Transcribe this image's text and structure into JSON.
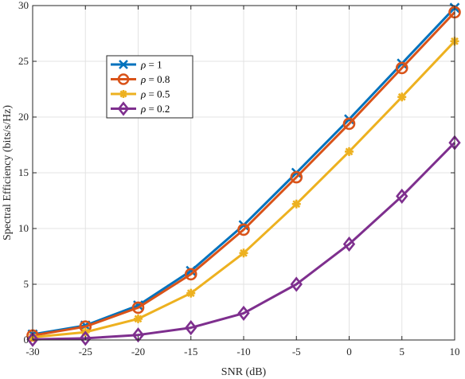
{
  "chart_data": {
    "type": "line",
    "title": "",
    "xlabel": "SNR (dB)",
    "ylabel": "Spectral Efficiency (bits/s/Hz)",
    "x": [
      -30,
      -25,
      -20,
      -15,
      -10,
      -5,
      0,
      5,
      10
    ],
    "xlim": [
      -30,
      10
    ],
    "ylim": [
      0,
      30
    ],
    "xticks": [
      "-30",
      "-25",
      "-20",
      "-15",
      "-10",
      "-5",
      "0",
      "5",
      "10"
    ],
    "yticks": [
      "0",
      "5",
      "10",
      "15",
      "20",
      "25",
      "30"
    ],
    "grid": true,
    "legend_position": "upper-left",
    "series": [
      {
        "name": "ρ = 1",
        "symbol": "ρ",
        "value_text": " = 1",
        "color": "#0072BD",
        "marker": "x",
        "values": [
          0.5,
          1.3,
          3.1,
          6.2,
          10.3,
          15.0,
          19.8,
          24.8,
          29.8
        ]
      },
      {
        "name": "ρ = 0.8",
        "symbol": "ρ",
        "value_text": " = 0.8",
        "color": "#D95319",
        "marker": "o",
        "values": [
          0.4,
          1.2,
          2.9,
          5.9,
          9.9,
          14.6,
          19.4,
          24.4,
          29.4
        ]
      },
      {
        "name": "ρ = 0.5",
        "symbol": "ρ",
        "value_text": " = 0.5",
        "color": "#EDB120",
        "marker": "asterisk",
        "values": [
          0.25,
          0.7,
          1.9,
          4.2,
          7.8,
          12.2,
          16.9,
          21.8,
          26.8
        ]
      },
      {
        "name": "ρ = 0.2",
        "symbol": "ρ",
        "value_text": " = 0.2",
        "color": "#7E2F8E",
        "marker": "diamond",
        "values": [
          0.05,
          0.15,
          0.45,
          1.1,
          2.4,
          5.0,
          8.6,
          12.9,
          17.7
        ]
      }
    ]
  }
}
